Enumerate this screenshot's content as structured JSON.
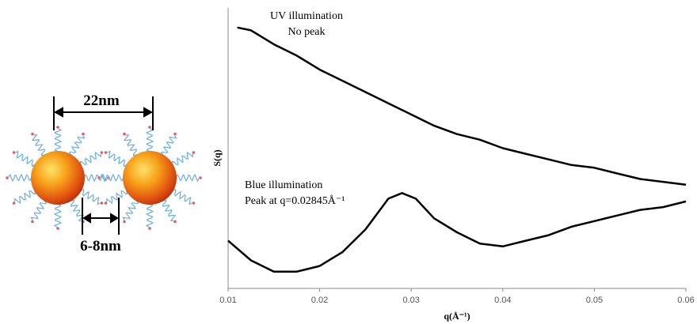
{
  "diagram": {
    "particle_diameter": "22nm",
    "gap": "6-8nm"
  },
  "chart_data": {
    "type": "line",
    "x_label": "q(Å⁻¹)",
    "y_label": "S(q)",
    "annotations": [
      "UV illumination",
      "No peak",
      "Blue illumination",
      "Peak at q=0.02845Å⁻¹"
    ],
    "xlim": [
      0.01,
      0.06
    ],
    "xticks": [
      0.01,
      0.02,
      0.03,
      0.04,
      0.05,
      0.06
    ],
    "ylim": [
      0,
      1
    ],
    "series": [
      {
        "name": "UV illumination",
        "color": "#000000",
        "x": [
          0.011,
          0.0125,
          0.015,
          0.0175,
          0.02,
          0.0225,
          0.025,
          0.0275,
          0.03,
          0.0325,
          0.035,
          0.0375,
          0.04,
          0.0425,
          0.045,
          0.0475,
          0.05,
          0.0525,
          0.055,
          0.0575,
          0.06
        ],
        "values": [
          0.93,
          0.92,
          0.87,
          0.83,
          0.78,
          0.74,
          0.7,
          0.66,
          0.62,
          0.58,
          0.55,
          0.53,
          0.5,
          0.48,
          0.46,
          0.44,
          0.43,
          0.41,
          0.39,
          0.38,
          0.37
        ]
      },
      {
        "name": "Blue illumination",
        "color": "#000000",
        "x": [
          0.01,
          0.0125,
          0.015,
          0.0175,
          0.02,
          0.0225,
          0.025,
          0.0275,
          0.029,
          0.0305,
          0.0325,
          0.035,
          0.0375,
          0.04,
          0.0425,
          0.045,
          0.0475,
          0.05,
          0.0525,
          0.055,
          0.0575,
          0.06
        ],
        "values": [
          0.17,
          0.1,
          0.06,
          0.06,
          0.08,
          0.13,
          0.21,
          0.32,
          0.34,
          0.32,
          0.25,
          0.2,
          0.16,
          0.15,
          0.17,
          0.19,
          0.22,
          0.24,
          0.26,
          0.28,
          0.29,
          0.31
        ]
      }
    ]
  }
}
